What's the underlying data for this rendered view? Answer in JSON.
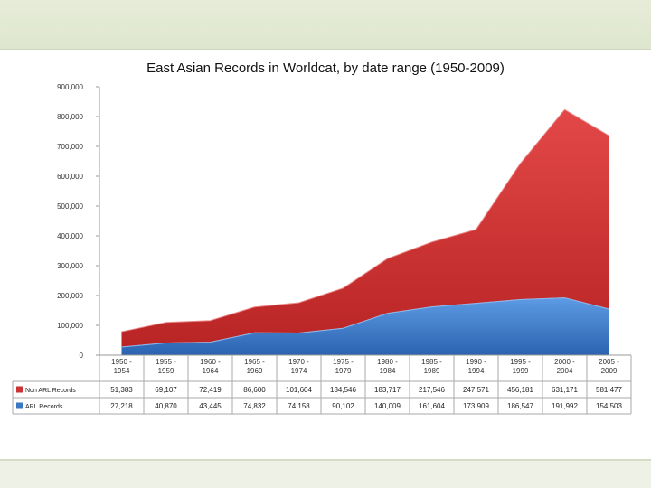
{
  "chart_data": {
    "type": "area",
    "stacked": true,
    "title": "East Asian Records in Worldcat, by date range (1950-2009)",
    "categories": [
      "1950 - 1954",
      "1955 - 1959",
      "1960 - 1964",
      "1965 - 1969",
      "1970 - 1974",
      "1975 - 1979",
      "1980 - 1984",
      "1985 - 1989",
      "1990 - 1994",
      "1995 - 1999",
      "2000 - 2004",
      "2005 - 2009"
    ],
    "ylim": [
      0,
      900000
    ],
    "yticks": [
      "0",
      "100,000",
      "200,000",
      "300,000",
      "400,000",
      "500,000",
      "600,000",
      "700,000",
      "800,000",
      "900,000"
    ],
    "grid": false,
    "legend": "data-table-bottom",
    "series": [
      {
        "name": "ARL Records",
        "color": "#3a78c6",
        "values": [
          27218,
          40870,
          43445,
          74832,
          74158,
          90102,
          140009,
          161604,
          173909,
          186547,
          191992,
          154503
        ],
        "labels": [
          "27,218",
          "40,870",
          "43,445",
          "74,832",
          "74,158",
          "90,102",
          "140,009",
          "161,604",
          "173,909",
          "186,547",
          "191,992",
          "154,503"
        ]
      },
      {
        "name": "Non ARL Records",
        "color": "#cc3333",
        "values": [
          51383,
          69107,
          72419,
          86600,
          101604,
          134546,
          183717,
          217546,
          247571,
          456181,
          631171,
          581477
        ],
        "labels": [
          "51,383",
          "69,107",
          "72,419",
          "86,600",
          "101,604",
          "134,546",
          "183,717",
          "217,546",
          "247,571",
          "456,181",
          "631,171",
          "581,477"
        ]
      }
    ]
  }
}
